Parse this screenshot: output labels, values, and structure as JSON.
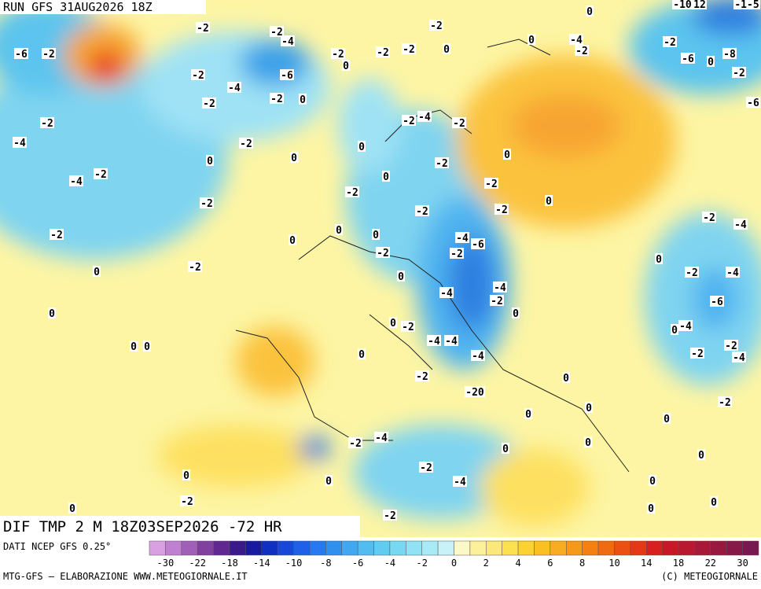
{
  "header": {
    "run": "RUN GFS 31AUG2026 18Z"
  },
  "map": {
    "title": "DIF TMP 2 M 18Z03SEP2026 -72 HR",
    "contour_labels": [
      "-6",
      "-2",
      "-2",
      "-2",
      "-4",
      "-6",
      "-2",
      "-4",
      "-2",
      "-2",
      "0",
      "0",
      "-2",
      "-2",
      "-2",
      "0",
      "-2",
      "0",
      "-4",
      "-2",
      "-2",
      "-4",
      "-2",
      "0",
      "0",
      "-2",
      "-4",
      "-2",
      "0",
      "-2",
      "-4",
      "-2",
      "-2",
      "0",
      "-2",
      "-2",
      "-2",
      "-2",
      "0",
      "-2",
      "0",
      "0",
      "0",
      "-2",
      "-4",
      "-6",
      "-2",
      "-2",
      "0",
      "0",
      "-4",
      "-4",
      "-2",
      "0",
      "0",
      "0",
      "-2",
      "0",
      "0",
      "-4",
      "-4",
      "0",
      "-4",
      "-2",
      "-20",
      "0",
      "0",
      "0",
      "-4",
      "-2",
      "0",
      "0",
      "0",
      "0",
      "-2",
      "-4",
      "-2",
      "0",
      "-2",
      "0",
      "0",
      "0",
      "0",
      "0",
      "-2",
      "-2",
      "-2",
      "-4",
      "0",
      "-4",
      "-6",
      "-2",
      "-4",
      "0",
      "-2",
      "-4",
      "-6",
      "-2",
      "-6",
      "0",
      "-8",
      "-2",
      "0",
      "-10",
      "12",
      "-1-5",
      "0"
    ]
  },
  "colorbar": {
    "source": "DATI NCEP GFS 0.25°",
    "labels": [
      "-30",
      "-22",
      "-18",
      "-14",
      "-10",
      "-8",
      "-6",
      "-4",
      "-2",
      "0",
      "2",
      "4",
      "6",
      "8",
      "10",
      "14",
      "18",
      "22",
      "30"
    ]
  },
  "footer": {
    "left": "MTG-GFS — ELABORAZIONE WWW.METEOGIORNALE.IT",
    "right": "(C) METEOGIORNALE"
  }
}
